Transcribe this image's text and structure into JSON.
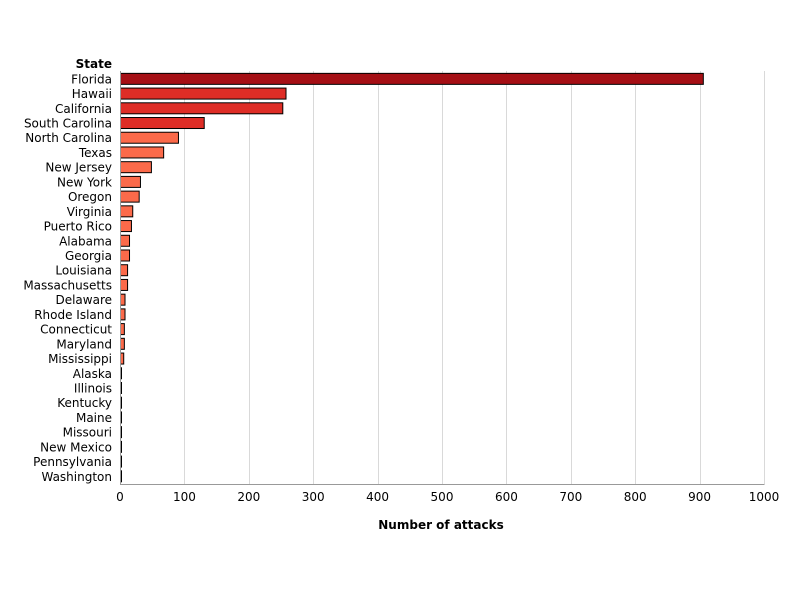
{
  "chart_data": {
    "type": "bar",
    "orientation": "horizontal",
    "category_axis_title": "State",
    "xlabel": "Number of attacks",
    "xlim": [
      0,
      1000
    ],
    "xticks": [
      0,
      100,
      200,
      300,
      400,
      500,
      600,
      700,
      800,
      900,
      1000
    ],
    "grid": "vertical",
    "legend": "none",
    "colors": {
      "dark": "#a50f15",
      "medium": "#de2d26",
      "light": "#fb6a4a",
      "outline": "#000000",
      "grid": "#d9d9d9"
    },
    "categories": [
      "Florida",
      "Hawaii",
      "California",
      "South Carolina",
      "North Carolina",
      "Texas",
      "New Jersey",
      "New York",
      "Oregon",
      "Virginia",
      "Puerto Rico",
      "Alabama",
      "Georgia",
      "Louisiana",
      "Massachusetts",
      "Delaware",
      "Rhode Island",
      "Connecticut",
      "Maryland",
      "Mississippi",
      "Alaska",
      "Illinois",
      "Kentucky",
      "Maine",
      "Missouri",
      "New Mexico",
      "Pennsylvania",
      "Washington"
    ],
    "values": [
      905,
      257,
      252,
      130,
      90,
      67,
      48,
      31,
      29,
      19,
      17,
      14,
      14,
      11,
      11,
      7,
      7,
      6,
      6,
      5,
      1,
      1,
      1,
      1,
      1,
      1,
      1,
      1
    ]
  }
}
